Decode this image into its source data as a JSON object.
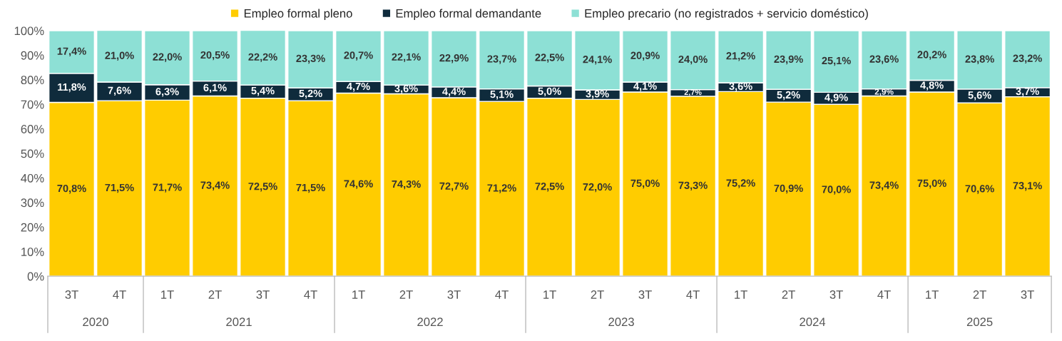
{
  "chart_data": {
    "type": "bar",
    "stacked": true,
    "legend": "top",
    "categories": [
      "3T",
      "4T",
      "1T",
      "2T",
      "3T",
      "4T",
      "1T",
      "2T",
      "3T",
      "4T",
      "1T",
      "2T",
      "3T",
      "4T",
      "1T",
      "2T",
      "3T",
      "4T",
      "1T",
      "2T",
      "3T"
    ],
    "annotations": [
      "2020",
      "2021",
      "2022",
      "2023",
      "2024",
      "2025"
    ],
    "ylim": [
      0,
      100
    ],
    "yticks": [
      {
        "value": 0,
        "label": "0%"
      },
      {
        "value": 10,
        "label": "10%"
      },
      {
        "value": 20,
        "label": "20%"
      },
      {
        "value": 30,
        "label": "30%"
      },
      {
        "value": 40,
        "label": "40%"
      },
      {
        "value": 50,
        "label": "50%"
      },
      {
        "value": 60,
        "label": "60%"
      },
      {
        "value": 70,
        "label": "70%"
      },
      {
        "value": 80,
        "label": "80%"
      },
      {
        "value": 90,
        "label": "90%"
      },
      {
        "value": 100,
        "label": "100%"
      }
    ],
    "series": [
      {
        "name": "Empleo formal pleno",
        "color": "#ffcc00",
        "values": [
          70.8,
          71.5,
          71.7,
          73.4,
          72.5,
          71.5,
          74.6,
          74.3,
          72.7,
          71.2,
          72.5,
          72.0,
          75.0,
          73.3,
          75.2,
          70.9,
          70.0,
          73.4,
          75.0,
          70.6,
          73.1
        ],
        "value_labels": [
          "70,8%",
          "71,5%",
          "71,7%",
          "73,4%",
          "72,5%",
          "71,5%",
          "74,6%",
          "74,3%",
          "72,7%",
          "71,2%",
          "72,5%",
          "72,0%",
          "75,0%",
          "73,3%",
          "75,2%",
          "70,9%",
          "70,0%",
          "73,4%",
          "75,0%",
          "70,6%",
          "73,1%"
        ]
      },
      {
        "name": "Empleo formal demandante",
        "color": "#0f2b3c",
        "values": [
          11.8,
          7.6,
          6.3,
          6.1,
          5.4,
          5.2,
          4.7,
          3.6,
          4.4,
          5.1,
          5.0,
          3.9,
          4.1,
          2.7,
          3.6,
          5.2,
          4.9,
          2.9,
          4.8,
          5.6,
          3.7
        ],
        "value_labels": [
          "11,8%",
          "7,6%",
          "6,3%",
          "6,1%",
          "5,4%",
          "5,2%",
          "4,7%",
          "3,6%",
          "4,4%",
          "5,1%",
          "5,0%",
          "3,9%",
          "4,1%",
          "2,7%",
          "3,6%",
          "5,2%",
          "4,9%",
          "2,9%",
          "4,8%",
          "5,6%",
          "3,7%"
        ]
      },
      {
        "name": "Empleo precario (no registrados + servicio doméstico)",
        "color": "#8de0d5",
        "values": [
          17.4,
          21.0,
          22.0,
          20.5,
          22.2,
          23.3,
          20.7,
          22.1,
          22.9,
          23.7,
          22.5,
          24.1,
          20.9,
          24.0,
          21.2,
          23.9,
          25.1,
          23.6,
          20.2,
          23.8,
          23.2
        ],
        "value_labels": [
          "17,4%",
          "21,0%",
          "22,0%",
          "20,5%",
          "22,2%",
          "23,3%",
          "20,7%",
          "22,1%",
          "22,9%",
          "23,7%",
          "22,5%",
          "24,1%",
          "20,9%",
          "24,0%",
          "21,2%",
          "23,9%",
          "25,1%",
          "23,6%",
          "20,2%",
          "23,8%",
          "23,2%"
        ]
      }
    ]
  }
}
